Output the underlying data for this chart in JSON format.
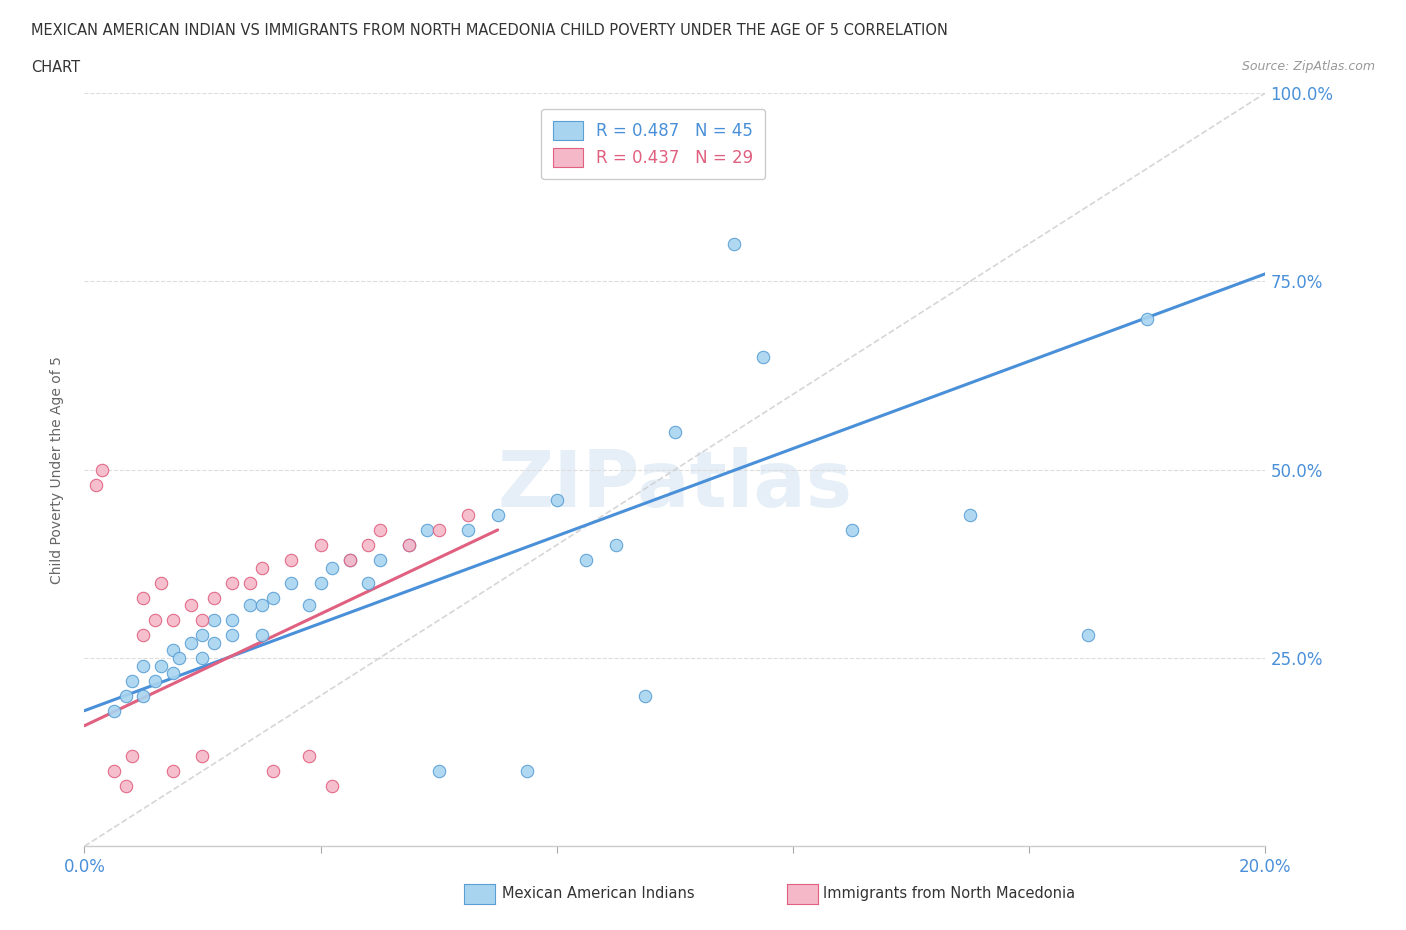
{
  "title_line1": "MEXICAN AMERICAN INDIAN VS IMMIGRANTS FROM NORTH MACEDONIA CHILD POVERTY UNDER THE AGE OF 5 CORRELATION",
  "title_line2": "CHART",
  "source": "Source: ZipAtlas.com",
  "ylabel": "Child Poverty Under the Age of 5",
  "xlim": [
    0.0,
    0.2
  ],
  "ylim": [
    0.0,
    1.0
  ],
  "xticks": [
    0.0,
    0.04,
    0.08,
    0.12,
    0.16,
    0.2
  ],
  "xticklabels": [
    "0.0%",
    "",
    "",
    "",
    "",
    "20.0%"
  ],
  "yticks": [
    0.0,
    0.25,
    0.5,
    0.75,
    1.0
  ],
  "yticklabels": [
    "",
    "25.0%",
    "50.0%",
    "75.0%",
    "100.0%"
  ],
  "blue_R": 0.487,
  "blue_N": 45,
  "pink_R": 0.437,
  "pink_N": 29,
  "blue_color": "#A8D4F0",
  "pink_color": "#F5B8C8",
  "blue_edge_color": "#5A9FD4",
  "pink_edge_color": "#E06080",
  "blue_line_color": "#4A90D9",
  "pink_line_color": "#E06080",
  "diag_line_color": "#CCCCCC",
  "watermark": "ZIPatlas",
  "legend_label_blue": "Mexican American Indians",
  "legend_label_pink": "Immigrants from North Macedonia",
  "blue_scatter_x": [
    0.005,
    0.007,
    0.008,
    0.01,
    0.01,
    0.012,
    0.013,
    0.015,
    0.015,
    0.016,
    0.018,
    0.02,
    0.02,
    0.022,
    0.022,
    0.025,
    0.025,
    0.028,
    0.03,
    0.03,
    0.032,
    0.035,
    0.038,
    0.04,
    0.042,
    0.045,
    0.048,
    0.05,
    0.055,
    0.058,
    0.06,
    0.065,
    0.07,
    0.075,
    0.08,
    0.085,
    0.09,
    0.095,
    0.1,
    0.11,
    0.115,
    0.13,
    0.15,
    0.17,
    0.18
  ],
  "blue_scatter_y": [
    0.18,
    0.2,
    0.22,
    0.2,
    0.24,
    0.22,
    0.24,
    0.23,
    0.26,
    0.25,
    0.27,
    0.25,
    0.28,
    0.27,
    0.3,
    0.28,
    0.3,
    0.32,
    0.28,
    0.32,
    0.33,
    0.35,
    0.32,
    0.35,
    0.37,
    0.38,
    0.35,
    0.38,
    0.4,
    0.42,
    0.1,
    0.42,
    0.44,
    0.1,
    0.46,
    0.38,
    0.4,
    0.2,
    0.55,
    0.8,
    0.65,
    0.42,
    0.44,
    0.28,
    0.7
  ],
  "pink_scatter_x": [
    0.002,
    0.003,
    0.005,
    0.007,
    0.008,
    0.01,
    0.01,
    0.012,
    0.013,
    0.015,
    0.015,
    0.018,
    0.02,
    0.02,
    0.022,
    0.025,
    0.028,
    0.03,
    0.032,
    0.035,
    0.038,
    0.04,
    0.042,
    0.045,
    0.048,
    0.05,
    0.055,
    0.06,
    0.065
  ],
  "pink_scatter_y": [
    0.48,
    0.5,
    0.1,
    0.08,
    0.12,
    0.28,
    0.33,
    0.3,
    0.35,
    0.3,
    0.1,
    0.32,
    0.3,
    0.12,
    0.33,
    0.35,
    0.35,
    0.37,
    0.1,
    0.38,
    0.12,
    0.4,
    0.08,
    0.38,
    0.4,
    0.42,
    0.4,
    0.42,
    0.44
  ],
  "blue_trendline_x": [
    0.0,
    0.2
  ],
  "blue_trendline_y": [
    0.18,
    0.76
  ],
  "pink_trendline_x": [
    0.0,
    0.07
  ],
  "pink_trendline_y": [
    0.16,
    0.42
  ]
}
